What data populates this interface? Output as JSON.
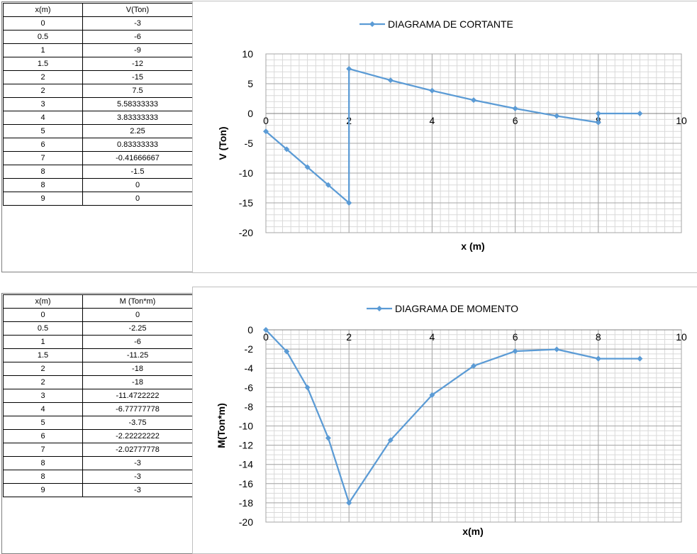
{
  "shear_table": {
    "headers": [
      "x(m)",
      "V(Ton)"
    ],
    "rows": [
      [
        "0",
        "-3"
      ],
      [
        "0.5",
        "-6"
      ],
      [
        "1",
        "-9"
      ],
      [
        "1.5",
        "-12"
      ],
      [
        "2",
        "-15"
      ],
      [
        "2",
        "7.5"
      ],
      [
        "3",
        "5.58333333"
      ],
      [
        "4",
        "3.83333333"
      ],
      [
        "5",
        "2.25"
      ],
      [
        "6",
        "0.83333333"
      ],
      [
        "7",
        "-0.41666667"
      ],
      [
        "8",
        "-1.5"
      ],
      [
        "8",
        "0"
      ],
      [
        "9",
        "0"
      ]
    ]
  },
  "moment_table": {
    "headers": [
      "x(m)",
      "M (Ton*m)"
    ],
    "rows": [
      [
        "0",
        "0"
      ],
      [
        "0.5",
        "-2.25"
      ],
      [
        "1",
        "-6"
      ],
      [
        "1.5",
        "-11.25"
      ],
      [
        "2",
        "-18"
      ],
      [
        "2",
        "-18"
      ],
      [
        "3",
        "-11.4722222"
      ],
      [
        "4",
        "-6.77777778"
      ],
      [
        "5",
        "-3.75"
      ],
      [
        "6",
        "-2.22222222"
      ],
      [
        "7",
        "-2.02777778"
      ],
      [
        "8",
        "-3"
      ],
      [
        "8",
        "-3"
      ],
      [
        "9",
        "-3"
      ]
    ]
  },
  "chart_data": [
    {
      "type": "scatter",
      "title": "DIAGRAMA DE CORTANTE",
      "xlabel": "x (m)",
      "ylabel": "V (Ton)",
      "xlim": [
        0,
        10
      ],
      "ylim": [
        -20,
        10
      ],
      "xticks": [
        0,
        2,
        4,
        6,
        8,
        10
      ],
      "yticks": [
        10,
        5,
        0,
        -5,
        -10,
        -15,
        -20
      ],
      "grid": true,
      "legend_position": "top",
      "color": "#5b9bd5",
      "series": [
        {
          "name": "DIAGRAMA DE CORTANTE",
          "x": [
            0,
            0.5,
            1,
            1.5,
            2,
            2,
            3,
            4,
            5,
            6,
            7,
            8,
            8,
            9
          ],
          "y": [
            -3,
            -6,
            -9,
            -12,
            -15,
            7.5,
            5.58333333,
            3.83333333,
            2.25,
            0.83333333,
            -0.41666667,
            -1.5,
            0,
            0
          ]
        }
      ]
    },
    {
      "type": "scatter",
      "title": "DIAGRAMA DE MOMENTO",
      "xlabel": "x(m)",
      "ylabel": "M(Ton*m)",
      "xlim": [
        0,
        10
      ],
      "ylim": [
        -20,
        0
      ],
      "xticks": [
        0,
        2,
        4,
        6,
        8,
        10
      ],
      "yticks": [
        0,
        -2,
        -4,
        -6,
        -8,
        -10,
        -12,
        -14,
        -16,
        -18,
        -20
      ],
      "grid": true,
      "legend_position": "top",
      "color": "#5b9bd5",
      "series": [
        {
          "name": "DIAGRAMA DE MOMENTO",
          "x": [
            0,
            0.5,
            1,
            1.5,
            2,
            2,
            3,
            4,
            5,
            6,
            7,
            8,
            8,
            9
          ],
          "y": [
            0,
            -2.25,
            -6,
            -11.25,
            -18,
            -18,
            -11.4722222,
            -6.77777778,
            -3.75,
            -2.22222222,
            -2.02777778,
            -3,
            -3,
            -3
          ]
        }
      ]
    }
  ]
}
